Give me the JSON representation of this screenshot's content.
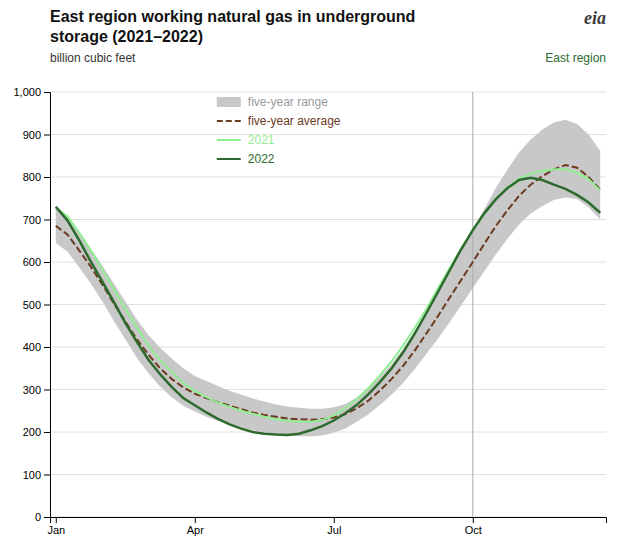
{
  "chart_data": {
    "type": "line",
    "title": [
      "East region working natural gas in underground",
      "storage (2021–2022)"
    ],
    "subtitle": "billion cubic feet",
    "annotations": [
      {
        "text": "eia",
        "color": "#3a3a3a"
      },
      {
        "text": "East region",
        "color": "#2d6a2d"
      }
    ],
    "categories": [
      "Jan",
      null,
      null,
      null,
      null,
      null,
      null,
      null,
      null,
      null,
      null,
      null,
      "Apr",
      null,
      null,
      null,
      null,
      null,
      null,
      null,
      null,
      null,
      null,
      null,
      "Jul",
      null,
      null,
      null,
      null,
      null,
      null,
      null,
      null,
      null,
      null,
      null,
      "Oct",
      null,
      null,
      null,
      null,
      null,
      null,
      null,
      null,
      null,
      null,
      null
    ],
    "ylim": [
      0,
      1000
    ],
    "yticks": [
      0,
      100,
      200,
      300,
      400,
      500,
      600,
      700,
      800,
      900,
      {
        "value": 1000,
        "label": "1,000"
      }
    ],
    "grid": true,
    "vline_x": 36,
    "series": [
      {
        "name": "five-year range",
        "type": "area",
        "color": "#c8c8c8",
        "upper": [
          725,
          705,
          671,
          633,
          592,
          550,
          507,
          465,
          428,
          398,
          373,
          350,
          332,
          320,
          308,
          297,
          288,
          279,
          272,
          265,
          260,
          257,
          255,
          255,
          258,
          266,
          282,
          303,
          330,
          360,
          396,
          438,
          482,
          528,
          575,
          625,
          675,
          725,
          775,
          818,
          858,
          888,
          912,
          928,
          935,
          925,
          900,
          862
        ],
        "lower": [
          645,
          625,
          588,
          550,
          508,
          462,
          418,
          375,
          338,
          307,
          282,
          262,
          248,
          236,
          226,
          218,
          210,
          204,
          198,
          195,
          192,
          190,
          190,
          192,
          198,
          208,
          224,
          242,
          264,
          288,
          316,
          348,
          384,
          420,
          458,
          498,
          538,
          578,
          618,
          655,
          688,
          714,
          732,
          746,
          752,
          748,
          728,
          700
        ]
      },
      {
        "name": "five-year average",
        "type": "line",
        "line_style": "dashed",
        "color": "#6b3a1f",
        "values": [
          685,
          665,
          628,
          590,
          548,
          503,
          460,
          418,
          382,
          350,
          325,
          305,
          290,
          280,
          270,
          262,
          254,
          246,
          240,
          236,
          232,
          230,
          229,
          230,
          234,
          242,
          256,
          274,
          298,
          325,
          356,
          392,
          432,
          473,
          516,
          558,
          600,
          643,
          685,
          722,
          756,
          782,
          802,
          818,
          828,
          822,
          800,
          770
        ]
      },
      {
        "name": "2021",
        "type": "line",
        "line_style": "solid",
        "color": "#90ee90",
        "values": [
          728,
          708,
          670,
          628,
          583,
          537,
          490,
          446,
          403,
          369,
          342,
          315,
          297,
          282,
          269,
          259,
          250,
          243,
          236,
          230,
          226,
          224,
          224,
          228,
          239,
          257,
          277,
          304,
          334,
          367,
          404,
          446,
          490,
          538,
          585,
          632,
          675,
          714,
          748,
          776,
          796,
          808,
          814,
          818,
          818,
          810,
          795,
          768
        ]
      },
      {
        "name": "2022",
        "type": "line",
        "line_style": "solid",
        "color": "#2d6a2d",
        "values": [
          730,
          698,
          652,
          602,
          555,
          507,
          457,
          412,
          370,
          336,
          306,
          280,
          263,
          246,
          231,
          218,
          208,
          200,
          196,
          194,
          193,
          196,
          204,
          214,
          227,
          244,
          264,
          289,
          318,
          350,
          388,
          432,
          480,
          530,
          580,
          630,
          675,
          715,
          748,
          774,
          793,
          798,
          793,
          782,
          772,
          758,
          740,
          716
        ]
      }
    ]
  }
}
